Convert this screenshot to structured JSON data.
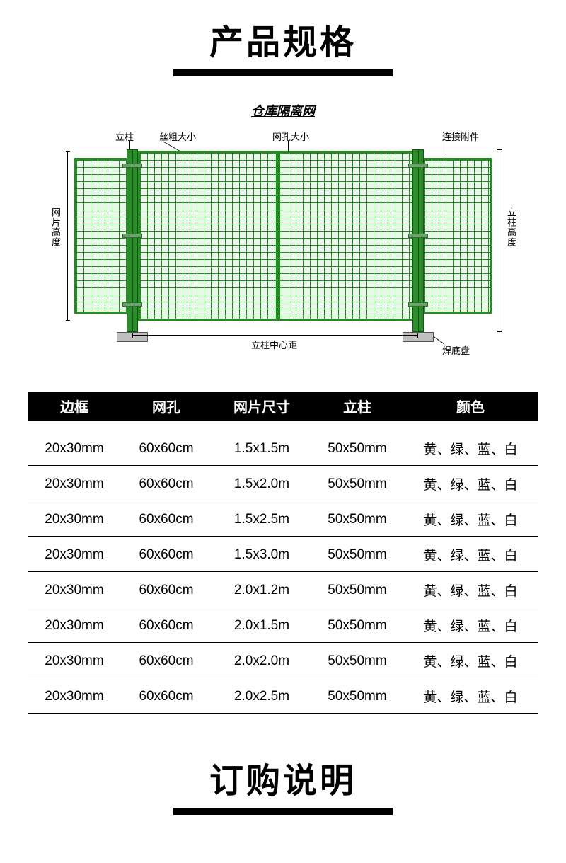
{
  "titles": {
    "spec": "产品规格",
    "order": "订购说明"
  },
  "diagram": {
    "title": "仓库隔离网",
    "labels": {
      "post": "立柱",
      "wire": "丝粗大小",
      "mesh": "网孔大小",
      "connector": "连接附件",
      "panel_height": "网片高度",
      "post_height": "立柱高度",
      "center_dist": "立柱中心距",
      "base": "焊底盘"
    },
    "colors": {
      "mesh": "#228b22",
      "post": "#2e8b2e",
      "base": "#bfbfbf"
    }
  },
  "table": {
    "headers": [
      "边框",
      "网孔",
      "网片尺寸",
      "立柱",
      "颜色"
    ],
    "rows": [
      [
        "20x30mm",
        "60x60cm",
        "1.5x1.5m",
        "50x50mm",
        "黄、绿、蓝、白"
      ],
      [
        "20x30mm",
        "60x60cm",
        "1.5x2.0m",
        "50x50mm",
        "黄、绿、蓝、白"
      ],
      [
        "20x30mm",
        "60x60cm",
        "1.5x2.5m",
        "50x50mm",
        "黄、绿、蓝、白"
      ],
      [
        "20x30mm",
        "60x60cm",
        "1.5x3.0m",
        "50x50mm",
        "黄、绿、蓝、白"
      ],
      [
        "20x30mm",
        "60x60cm",
        "2.0x1.2m",
        "50x50mm",
        "黄、绿、蓝、白"
      ],
      [
        "20x30mm",
        "60x60cm",
        "2.0x1.5m",
        "50x50mm",
        "黄、绿、蓝、白"
      ],
      [
        "20x30mm",
        "60x60cm",
        "2.0x2.0m",
        "50x50mm",
        "黄、绿、蓝、白"
      ],
      [
        "20x30mm",
        "60x60cm",
        "2.0x2.5m",
        "50x50mm",
        "黄、绿、蓝、白"
      ]
    ]
  }
}
